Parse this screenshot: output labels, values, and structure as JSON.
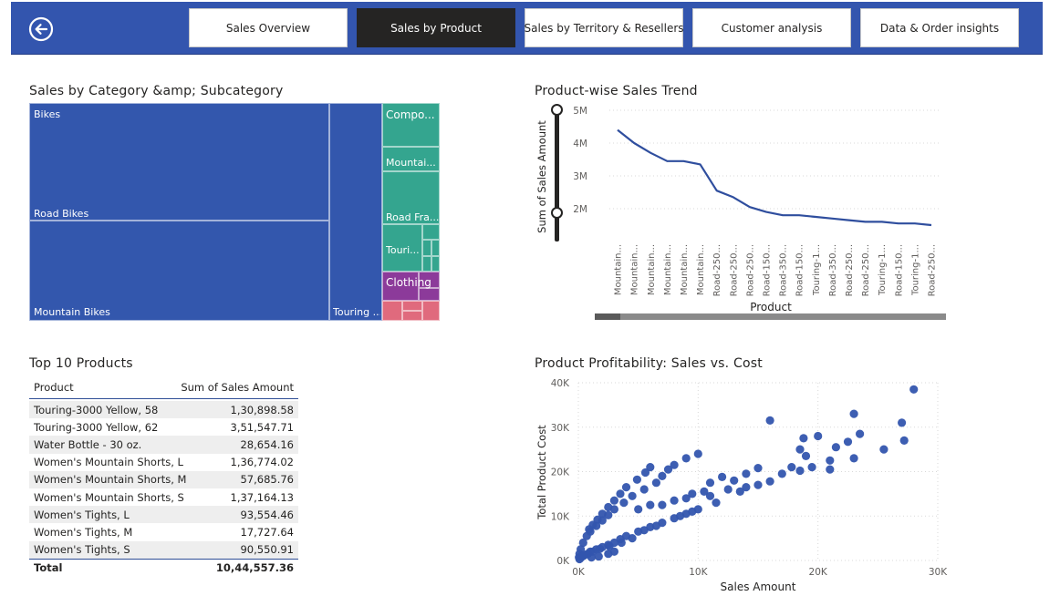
{
  "nav": {
    "tabs": [
      {
        "label": "Sales Overview",
        "active": false
      },
      {
        "label": "Sales by Product",
        "active": true
      },
      {
        "label": "Sales by Territory & Resellers",
        "active": false
      },
      {
        "label": "Customer analysis",
        "active": false
      },
      {
        "label": "Data & Order insights",
        "active": false
      }
    ],
    "back_icon": "back-arrow-circle-icon"
  },
  "treemap": {
    "title": "Sales by Category &amp; Subcategory",
    "labels": {
      "bikes": "Bikes",
      "road_bikes": "Road Bikes",
      "mountain_bikes": "Mountain Bikes",
      "touring": "Touring ...",
      "components": "Compo...",
      "mountain": "Mountai...",
      "road_frames": "Road Fra...",
      "touring_small": "Touri...",
      "clothing": "Clothing"
    },
    "colors": {
      "bikes": "#3357ad",
      "components": "#34a58f",
      "clothing": "#8c3a9a",
      "accessories": "#e06a7d"
    }
  },
  "line_chart": {
    "title": "Product-wise Sales Trend",
    "ylabel": "Sum of Sales Amount",
    "xlabel": "Product",
    "y_ticks": [
      "5M",
      "4M",
      "3M",
      "2M"
    ],
    "categories": [
      "Mountain...",
      "Mountain...",
      "Mountain...",
      "Mountain...",
      "Mountain...",
      "Mountain...",
      "Road-250...",
      "Road-250...",
      "Road-250...",
      "Road-150...",
      "Road-350...",
      "Road-150...",
      "Touring-1...",
      "Road-350...",
      "Road-250...",
      "Road-250...",
      "Touring-1...",
      "Road-150...",
      "Touring-1...",
      "Road-250..."
    ]
  },
  "table": {
    "title": "Top 10 Products",
    "headers": [
      "Product",
      "Sum of Sales Amount"
    ],
    "rows": [
      [
        "Touring-3000 Yellow, 58",
        "1,30,898.58"
      ],
      [
        "Touring-3000 Yellow, 62",
        "3,51,547.71"
      ],
      [
        "Water Bottle - 30 oz.",
        "28,654.16"
      ],
      [
        "Women's Mountain Shorts, L",
        "1,36,774.02"
      ],
      [
        "Women's Mountain Shorts, M",
        "57,685.76"
      ],
      [
        "Women's Mountain Shorts, S",
        "1,37,164.13"
      ],
      [
        "Women's Tights, L",
        "93,554.46"
      ],
      [
        "Women's Tights, M",
        "17,727.64"
      ],
      [
        "Women's Tights, S",
        "90,550.91"
      ]
    ],
    "total": [
      "Total",
      "10,44,557.36"
    ]
  },
  "scatter": {
    "title": "Product Profitability: Sales vs. Cost",
    "xlabel": "Sales Amount",
    "ylabel": "Total Product Cost",
    "x_ticks": [
      "0K",
      "10K",
      "20K",
      "30K"
    ],
    "y_ticks": [
      "40K",
      "30K",
      "20K",
      "10K",
      "0K"
    ]
  },
  "chart_data": [
    {
      "type": "line",
      "title": "Product-wise Sales Trend",
      "xlabel": "Product",
      "ylabel": "Sum of Sales Amount",
      "ylim": [
        1000000,
        5000000
      ],
      "categories": [
        "Mountain...",
        "Mountain...",
        "Mountain...",
        "Mountain...",
        "Mountain...",
        "Mountain...",
        "Road-250...",
        "Road-250...",
        "Road-250...",
        "Road-150...",
        "Road-350...",
        "Road-150...",
        "Touring-1...",
        "Road-350...",
        "Road-250...",
        "Road-250...",
        "Touring-1...",
        "Road-150...",
        "Touring-1...",
        "Road-250..."
      ],
      "values": [
        4400000,
        4000000,
        3700000,
        3450000,
        3450000,
        3350000,
        2550000,
        2350000,
        2050000,
        1900000,
        1800000,
        1800000,
        1750000,
        1700000,
        1650000,
        1600000,
        1600000,
        1550000,
        1550000,
        1500000
      ]
    },
    {
      "type": "scatter",
      "title": "Product Profitability: Sales vs. Cost",
      "xlabel": "Sales Amount",
      "ylabel": "Total Product Cost",
      "xlim": [
        0,
        30000
      ],
      "ylim": [
        0,
        40000
      ],
      "points": [
        [
          28000,
          38500
        ],
        [
          16000,
          31500
        ],
        [
          23000,
          33000
        ],
        [
          27000,
          31000
        ],
        [
          23500,
          28500
        ],
        [
          20000,
          28000
        ],
        [
          18800,
          27500
        ],
        [
          27200,
          27000
        ],
        [
          22500,
          26700
        ],
        [
          21500,
          25500
        ],
        [
          25500,
          25000
        ],
        [
          23000,
          23000
        ],
        [
          18500,
          25000
        ],
        [
          19000,
          23500
        ],
        [
          21000,
          22500
        ],
        [
          19500,
          21000
        ],
        [
          17800,
          21000
        ],
        [
          21000,
          20500
        ],
        [
          18500,
          20200
        ],
        [
          15000,
          20800
        ],
        [
          14000,
          19500
        ],
        [
          12000,
          18800
        ],
        [
          13000,
          18000
        ],
        [
          16000,
          17800
        ],
        [
          15000,
          17000
        ],
        [
          14000,
          16500
        ],
        [
          11000,
          17500
        ],
        [
          12500,
          16000
        ],
        [
          10500,
          15500
        ],
        [
          9500,
          15000
        ],
        [
          11000,
          14500
        ],
        [
          9000,
          14000
        ],
        [
          8000,
          13500
        ],
        [
          7000,
          12500
        ],
        [
          6000,
          12500
        ],
        [
          5000,
          11500
        ],
        [
          6000,
          21000
        ],
        [
          5600,
          19800
        ],
        [
          4900,
          18200
        ],
        [
          4000,
          16500
        ],
        [
          3500,
          15000
        ],
        [
          3000,
          13500
        ],
        [
          2500,
          12000
        ],
        [
          2000,
          10500
        ],
        [
          1600,
          9200
        ],
        [
          1200,
          8000
        ],
        [
          900,
          7000
        ],
        [
          10000,
          24000
        ],
        [
          9000,
          23000
        ],
        [
          8000,
          21500
        ],
        [
          7500,
          20500
        ],
        [
          7000,
          19000
        ],
        [
          6500,
          17500
        ],
        [
          5500,
          16000
        ],
        [
          4500,
          14500
        ],
        [
          3800,
          13000
        ],
        [
          3000,
          11500
        ],
        [
          2500,
          10200
        ],
        [
          2000,
          9000
        ],
        [
          1500,
          7800
        ],
        [
          1000,
          6500
        ],
        [
          700,
          5500
        ],
        [
          400,
          4000
        ],
        [
          200,
          2500
        ],
        [
          100,
          1500
        ],
        [
          50,
          700
        ],
        [
          10000,
          11500
        ],
        [
          9000,
          10500
        ],
        [
          8000,
          9500
        ],
        [
          7000,
          8500
        ],
        [
          6000,
          7500
        ],
        [
          5000,
          6500
        ],
        [
          4000,
          5500
        ],
        [
          3500,
          4800
        ],
        [
          3000,
          4000
        ],
        [
          2500,
          3500
        ],
        [
          2000,
          3000
        ],
        [
          1500,
          2500
        ],
        [
          1000,
          2000
        ],
        [
          800,
          1500
        ],
        [
          500,
          1200
        ],
        [
          300,
          900
        ],
        [
          200,
          600
        ],
        [
          100,
          300
        ],
        [
          4500,
          5000
        ],
        [
          3600,
          4000
        ],
        [
          2600,
          3200
        ],
        [
          1800,
          2600
        ],
        [
          1200,
          2000
        ],
        [
          700,
          1400
        ],
        [
          400,
          1000
        ],
        [
          1100,
          700
        ],
        [
          1700,
          900
        ],
        [
          2500,
          1500
        ],
        [
          3000,
          2000
        ],
        [
          5500,
          6800
        ],
        [
          6500,
          7800
        ],
        [
          8500,
          10000
        ],
        [
          9500,
          11000
        ],
        [
          11500,
          13000
        ],
        [
          13500,
          15500
        ],
        [
          17000,
          19500
        ]
      ]
    }
  ]
}
